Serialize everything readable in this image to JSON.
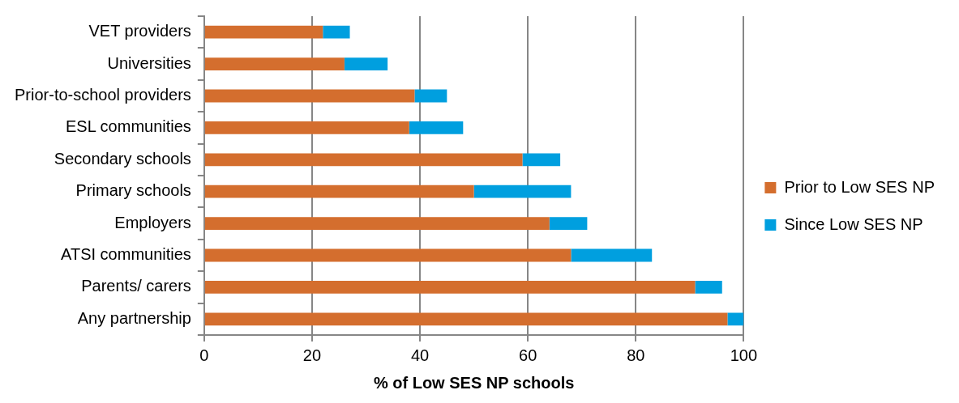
{
  "chart_data": {
    "type": "bar",
    "orientation": "horizontal",
    "stacked": true,
    "xlabel": "% of Low SES NP schools",
    "categories": [
      "VET providers",
      "Universities",
      "Prior-to-school providers",
      "ESL communities",
      "Secondary schools",
      "Primary schools",
      "Employers",
      "ATSI communities",
      "Parents/ carers",
      "Any partnership"
    ],
    "series": [
      {
        "name": "Prior to Low SES NP",
        "color": "#d46e2e",
        "values": [
          22,
          26,
          39,
          38,
          59,
          50,
          64,
          68,
          91,
          97
        ]
      },
      {
        "name": "Since Low SES NP",
        "color": "#009fdf",
        "values": [
          5,
          8,
          6,
          10,
          7,
          18,
          7,
          15,
          5,
          3
        ]
      }
    ],
    "xlim": [
      0,
      100
    ],
    "xticks": [
      0,
      20,
      40,
      60,
      80,
      100
    ],
    "grid": "x",
    "legend": "right"
  }
}
